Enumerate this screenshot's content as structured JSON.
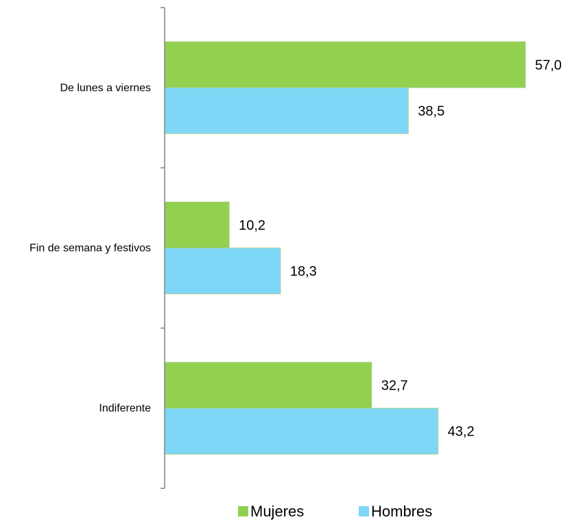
{
  "chart_data": {
    "type": "bar",
    "orientation": "horizontal",
    "categories": [
      "De lunes a viernes",
      "Fin de semana y festivos",
      "Indiferente"
    ],
    "series": [
      {
        "name": "Mujeres",
        "values": [
          57.0,
          10.2,
          32.7
        ],
        "labels": [
          "57,0",
          "10,2",
          "32,7"
        ],
        "color": "#92d050"
      },
      {
        "name": "Hombres",
        "values": [
          38.5,
          18.3,
          43.2
        ],
        "labels": [
          "38,5",
          "18,3",
          "43,2"
        ],
        "color": "#7fd7f7"
      }
    ],
    "xlim": [
      0,
      60
    ],
    "grid": false,
    "legend_position": "bottom",
    "axis_color": "#808080"
  }
}
